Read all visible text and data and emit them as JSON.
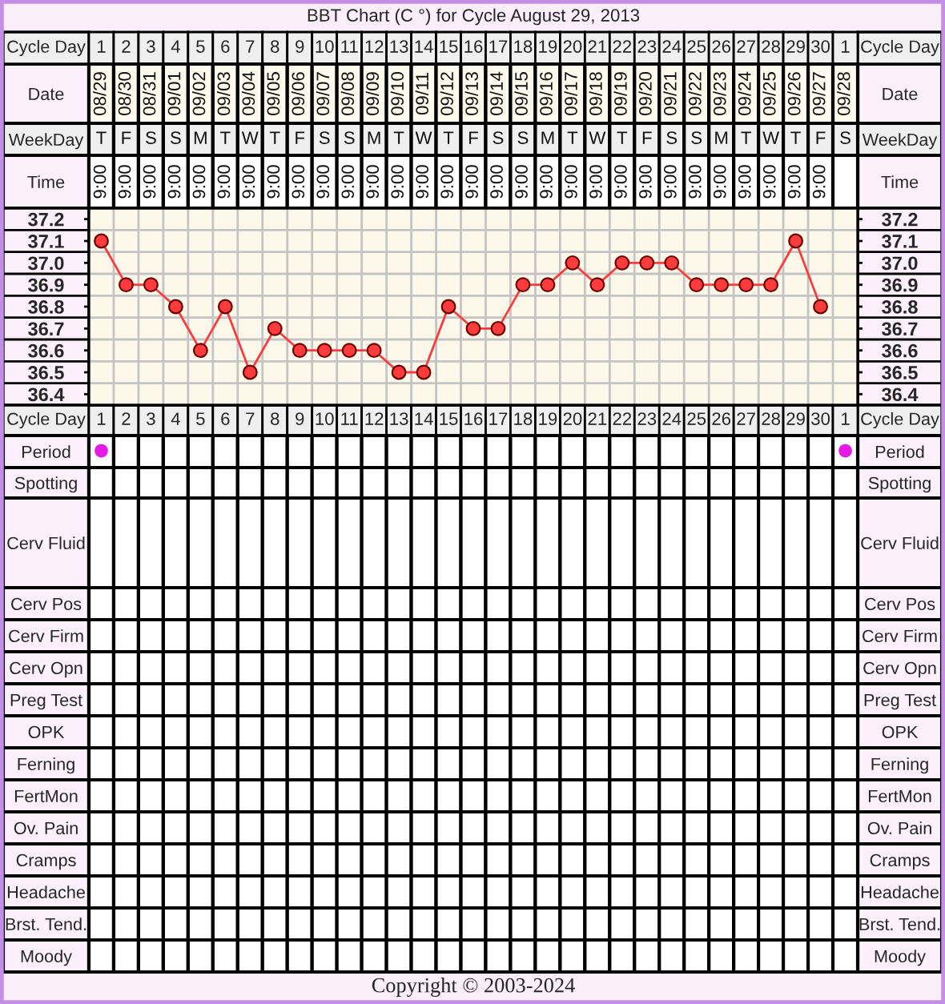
{
  "chart_data": [
    {
      "type": "heatmap",
      "title": "BBT Chart (C °) for Cycle August 29, 2013",
      "xlabel": "Cycle Day",
      "categories": [
        "1",
        "2",
        "3",
        "4",
        "5",
        "6",
        "7",
        "8",
        "9",
        "10",
        "11",
        "12",
        "13",
        "14",
        "15",
        "16",
        "17",
        "18",
        "19",
        "20",
        "21",
        "22",
        "23",
        "24",
        "25",
        "26",
        "27",
        "28",
        "29",
        "30",
        "1"
      ],
      "y_categories": [
        "Date",
        "WeekDay",
        "Time"
      ],
      "y2_categories": [
        "Date",
        "WeekDay",
        "Time"
      ],
      "cells": [
        [
          null,
          null,
          null,
          null,
          null,
          null,
          null,
          null,
          null,
          null,
          null,
          null,
          null,
          null,
          null,
          null,
          null,
          null,
          null,
          null,
          null,
          null,
          null,
          null,
          null,
          null,
          null,
          null,
          null,
          null,
          null
        ],
        [
          null,
          null,
          null,
          null,
          null,
          null,
          null,
          null,
          null,
          null,
          null,
          null,
          null,
          null,
          null,
          null,
          null,
          null,
          null,
          null,
          null,
          null,
          null,
          null,
          null,
          null,
          null,
          null,
          null,
          null,
          null
        ],
        [
          null,
          null,
          null,
          null,
          null,
          null,
          null,
          null,
          null,
          null,
          null,
          null,
          null,
          null,
          null,
          null,
          null,
          null,
          null,
          null,
          null,
          null,
          null,
          null,
          null,
          null,
          null,
          null,
          null,
          null,
          null
        ]
      ],
      "cell_labels": [
        [
          "08/29",
          "08/30",
          "08/31",
          "09/01",
          "09/02",
          "09/03",
          "09/04",
          "09/05",
          "09/06",
          "09/07",
          "09/08",
          "09/09",
          "09/10",
          "09/11",
          "09/12",
          "09/13",
          "09/14",
          "09/15",
          "09/16",
          "09/17",
          "09/18",
          "09/19",
          "09/20",
          "09/21",
          "09/22",
          "09/23",
          "09/24",
          "09/25",
          "09/26",
          "09/27",
          "09/28"
        ],
        [
          "T",
          "F",
          "S",
          "S",
          "M",
          "T",
          "W",
          "T",
          "F",
          "S",
          "S",
          "M",
          "T",
          "W",
          "T",
          "F",
          "S",
          "S",
          "M",
          "T",
          "W",
          "T",
          "F",
          "S",
          "S",
          "M",
          "T",
          "W",
          "T",
          "F",
          "S"
        ],
        [
          "9:00",
          "9:00",
          "9:00",
          "9:00",
          "9:00",
          "9:00",
          "9:00",
          "9:00",
          "9:00",
          "9:00",
          "9:00",
          "9:00",
          "9:00",
          "9:00",
          "9:00",
          "9:00",
          "9:00",
          "9:00",
          "9:00",
          "9:00",
          "9:00",
          "9:00",
          "9:00",
          "9:00",
          "9:00",
          "9:00",
          "9:00",
          "9:00",
          "9:00",
          "9:00",
          null
        ]
      ]
    },
    {
      "type": "line",
      "categories": [
        "1",
        "2",
        "3",
        "4",
        "5",
        "6",
        "7",
        "8",
        "9",
        "10",
        "11",
        "12",
        "13",
        "14",
        "15",
        "16",
        "17",
        "18",
        "19",
        "20",
        "21",
        "22",
        "23",
        "24",
        "25",
        "26",
        "27",
        "28",
        "29",
        "30",
        "1"
      ],
      "xlabel": "Cycle Day",
      "values": [
        37.1,
        36.9,
        36.9,
        36.8,
        36.6,
        36.8,
        36.5,
        36.7,
        36.6,
        36.6,
        36.6,
        36.6,
        36.5,
        36.5,
        36.8,
        36.7,
        36.7,
        36.9,
        36.9,
        37.0,
        36.9,
        37.0,
        37.0,
        37.0,
        36.9,
        36.9,
        36.9,
        36.9,
        37.1,
        36.8,
        null
      ],
      "color": "#ff3b3b",
      "marker": "circle",
      "grid": true,
      "ylim": [
        36.35,
        37.25
      ],
      "yticks": [
        36.4,
        {
          "value": 36.45,
          "label": null
        },
        36.5,
        {
          "value": 36.55,
          "label": null
        },
        36.6,
        {
          "value": 36.65,
          "label": null
        },
        36.7,
        {
          "value": 36.75,
          "label": null
        },
        36.8,
        {
          "value": 36.85,
          "label": null
        },
        36.9,
        {
          "value": 36.95,
          "label": null
        },
        {
          "value": 37.0,
          "label": "37.0"
        },
        {
          "value": 37.05,
          "label": null
        },
        37.1,
        {
          "value": 37.15,
          "label": null
        },
        37.2
      ],
      "y2lim": [
        36.35,
        37.25
      ],
      "y2ticks": [
        36.4,
        {
          "value": 36.45,
          "label": null
        },
        36.5,
        {
          "value": 36.55,
          "label": null
        },
        36.6,
        {
          "value": 36.65,
          "label": null
        },
        36.7,
        {
          "value": 36.75,
          "label": null
        },
        36.8,
        {
          "value": 36.85,
          "label": null
        },
        36.9,
        {
          "value": 36.95,
          "label": null
        },
        {
          "value": 37.0,
          "label": "37.0"
        },
        {
          "value": 37.05,
          "label": null
        },
        37.1,
        {
          "value": 37.15,
          "label": null
        },
        37.2
      ]
    },
    {
      "type": "heatmap",
      "categories": [
        null,
        null,
        null,
        null,
        null,
        null,
        null,
        null,
        null,
        null,
        null,
        null,
        null,
        null,
        null,
        null,
        null,
        null,
        null,
        null,
        null,
        null,
        null,
        null,
        null,
        null,
        null,
        null,
        null,
        null,
        null
      ],
      "y_categories": [
        "Period",
        "Spotting",
        "Cerv Fluid",
        "Cerv Pos",
        "Cerv Firm",
        "Cerv Opn",
        "Preg Test",
        "OPK",
        "Ferning",
        "FertMon",
        "Ov. Pain",
        "Cramps",
        "Headache",
        "Brst. Tend.",
        "Moody"
      ],
      "y2_categories": [
        "Period",
        "Spotting",
        "Cerv Fluid",
        "Cerv Pos",
        "Cerv Firm",
        "Cerv Opn",
        "Preg Test",
        "OPK",
        "Ferning",
        "FertMon",
        "Ov. Pain",
        "Cramps",
        "Headache",
        "Brst. Tend.",
        "Moody"
      ],
      "cells": [
        [
          null,
          null,
          null,
          null,
          null,
          null,
          null,
          null,
          null,
          null,
          null,
          null,
          null,
          null,
          null,
          null,
          null,
          null,
          null,
          null,
          null,
          null,
          null,
          null,
          null,
          null,
          null,
          null,
          null,
          null,
          null
        ],
        [
          null,
          null,
          null,
          null,
          null,
          null,
          null,
          null,
          null,
          null,
          null,
          null,
          null,
          null,
          null,
          null,
          null,
          null,
          null,
          null,
          null,
          null,
          null,
          null,
          null,
          null,
          null,
          null,
          null,
          null,
          null
        ],
        [
          null,
          null,
          null,
          null,
          null,
          null,
          null,
          null,
          null,
          null,
          null,
          null,
          null,
          null,
          null,
          null,
          null,
          null,
          null,
          null,
          null,
          null,
          null,
          null,
          null,
          null,
          null,
          null,
          null,
          null,
          null
        ],
        [
          null,
          null,
          null,
          null,
          null,
          null,
          null,
          null,
          null,
          null,
          null,
          null,
          null,
          null,
          null,
          null,
          null,
          null,
          null,
          null,
          null,
          null,
          null,
          null,
          null,
          null,
          null,
          null,
          null,
          null,
          null
        ],
        [
          null,
          null,
          null,
          null,
          null,
          null,
          null,
          null,
          null,
          null,
          null,
          null,
          null,
          null,
          null,
          null,
          null,
          null,
          null,
          null,
          null,
          null,
          null,
          null,
          null,
          null,
          null,
          null,
          null,
          null,
          null
        ],
        [
          null,
          null,
          null,
          null,
          null,
          null,
          null,
          null,
          null,
          null,
          null,
          null,
          null,
          null,
          null,
          null,
          null,
          null,
          null,
          null,
          null,
          null,
          null,
          null,
          null,
          null,
          null,
          null,
          null,
          null,
          null
        ],
        [
          null,
          null,
          null,
          null,
          null,
          null,
          null,
          null,
          null,
          null,
          null,
          null,
          null,
          null,
          null,
          null,
          null,
          null,
          null,
          null,
          null,
          null,
          null,
          null,
          null,
          null,
          null,
          null,
          null,
          null,
          null
        ],
        [
          null,
          null,
          null,
          null,
          null,
          null,
          null,
          null,
          null,
          null,
          null,
          null,
          null,
          null,
          null,
          null,
          null,
          null,
          null,
          null,
          null,
          null,
          null,
          null,
          null,
          null,
          null,
          null,
          null,
          null,
          null
        ],
        [
          null,
          null,
          null,
          null,
          null,
          null,
          null,
          null,
          null,
          null,
          null,
          null,
          null,
          null,
          null,
          null,
          null,
          null,
          null,
          null,
          null,
          null,
          null,
          null,
          null,
          null,
          null,
          null,
          null,
          null,
          null
        ],
        [
          null,
          null,
          null,
          null,
          null,
          null,
          null,
          null,
          null,
          null,
          null,
          null,
          null,
          null,
          null,
          null,
          null,
          null,
          null,
          null,
          null,
          null,
          null,
          null,
          null,
          null,
          null,
          null,
          null,
          null,
          null
        ],
        [
          null,
          null,
          null,
          null,
          null,
          null,
          null,
          null,
          null,
          null,
          null,
          null,
          null,
          null,
          null,
          null,
          null,
          null,
          null,
          null,
          null,
          null,
          null,
          null,
          null,
          null,
          null,
          null,
          null,
          null,
          null
        ],
        [
          null,
          null,
          null,
          null,
          null,
          null,
          null,
          null,
          null,
          null,
          null,
          null,
          null,
          null,
          null,
          null,
          null,
          null,
          null,
          null,
          null,
          null,
          null,
          null,
          null,
          null,
          null,
          null,
          null,
          null,
          null
        ],
        [
          null,
          null,
          null,
          null,
          null,
          null,
          null,
          null,
          null,
          null,
          null,
          null,
          null,
          null,
          null,
          null,
          null,
          null,
          null,
          null,
          null,
          null,
          null,
          null,
          null,
          null,
          null,
          null,
          null,
          null,
          null
        ],
        [
          null,
          null,
          null,
          null,
          null,
          null,
          null,
          null,
          null,
          null,
          null,
          null,
          null,
          null,
          null,
          null,
          null,
          null,
          null,
          null,
          null,
          null,
          null,
          null,
          null,
          null,
          null,
          null,
          null,
          null,
          null
        ],
        [
          null,
          null,
          null,
          null,
          null,
          null,
          null,
          null,
          null,
          null,
          null,
          null,
          null,
          null,
          null,
          null,
          null,
          null,
          null,
          null,
          null,
          null,
          null,
          null,
          null,
          null,
          null,
          null,
          null,
          null,
          null
        ]
      ],
      "cell_labels": [
        [
          "●",
          null,
          null,
          null,
          null,
          null,
          null,
          null,
          null,
          null,
          null,
          null,
          null,
          null,
          null,
          null,
          null,
          null,
          null,
          null,
          null,
          null,
          null,
          null,
          null,
          null,
          null,
          null,
          null,
          null,
          "●"
        ]
      ],
      "color": "#e619e6",
      "annotations": [
        "Copyright © 2003-2024"
      ]
    }
  ]
}
